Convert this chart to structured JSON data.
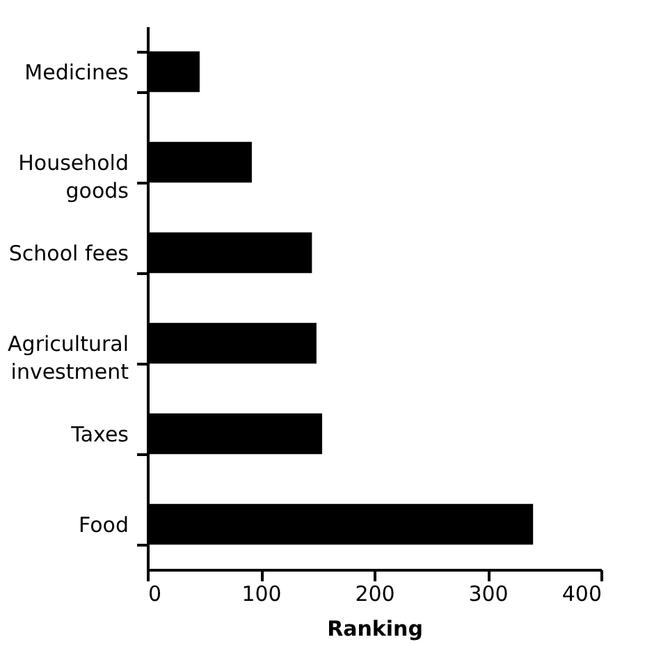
{
  "chart_data": {
    "type": "bar",
    "orientation": "horizontal",
    "xlabel": "Ranking",
    "categories": [
      "Medicines",
      "Household\ngoods",
      "School fees",
      "Agricultural\ninvestment",
      "Taxes",
      "Food"
    ],
    "values": [
      46,
      92,
      145,
      149,
      154,
      340
    ],
    "color": "#000000",
    "xlim": [
      0,
      400
    ],
    "xticks": [
      0,
      100,
      200,
      300,
      400
    ],
    "grid": false
  }
}
